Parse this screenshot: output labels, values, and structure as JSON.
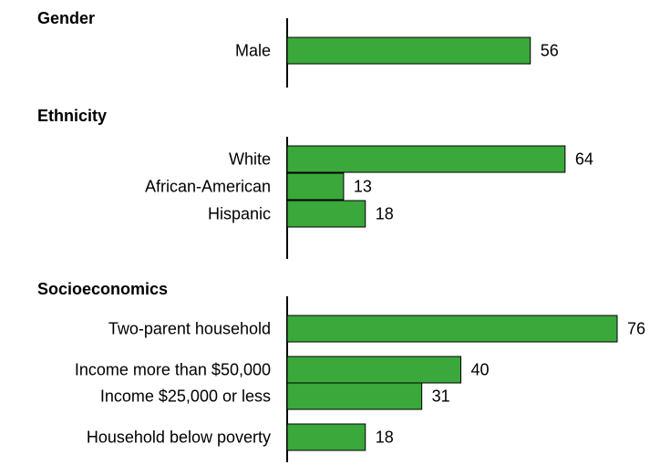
{
  "chart_data": {
    "type": "bar",
    "orientation": "horizontal",
    "bar_color": "#3aa83a",
    "grid": false,
    "xlim": [
      0,
      76
    ],
    "groups": [
      {
        "title": "Gender",
        "categories": [
          "Male"
        ],
        "values": [
          56
        ]
      },
      {
        "title": "Ethnicity",
        "categories": [
          "White",
          "African-American",
          "Hispanic"
        ],
        "values": [
          64,
          13,
          18
        ]
      },
      {
        "title": "Socioeconomics",
        "categories": [
          "Two-parent household",
          "Income more than $50,000",
          "Income $25,000 or less",
          "Household below poverty"
        ],
        "values": [
          76,
          40,
          31,
          18
        ]
      }
    ]
  }
}
